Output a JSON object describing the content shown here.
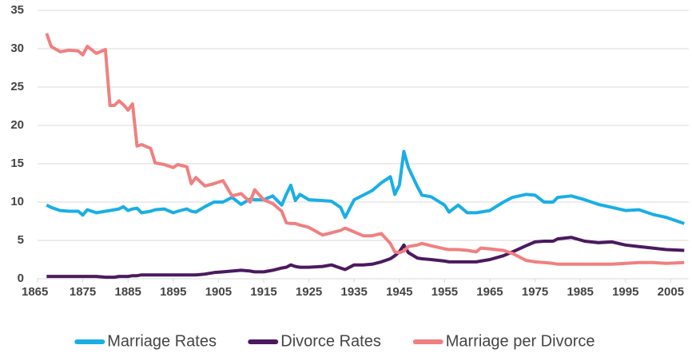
{
  "chart_data": {
    "type": "line",
    "x": [
      1867,
      1868,
      1870,
      1872,
      1874,
      1875,
      1876,
      1878,
      1880,
      1881,
      1882,
      1883,
      1884,
      1885,
      1886,
      1887,
      1888,
      1890,
      1891,
      1893,
      1895,
      1896,
      1898,
      1899,
      1900,
      1902,
      1904,
      1906,
      1908,
      1910,
      1912,
      1913,
      1915,
      1917,
      1919,
      1920,
      1921,
      1922,
      1923,
      1925,
      1928,
      1930,
      1932,
      1933,
      1935,
      1937,
      1939,
      1941,
      1943,
      1944,
      1945,
      1946,
      1947,
      1949,
      1950,
      1952,
      1955,
      1956,
      1958,
      1960,
      1962,
      1963,
      1965,
      1968,
      1970,
      1973,
      1975,
      1977,
      1979,
      1980,
      1983,
      1986,
      1989,
      1992,
      1995,
      1998,
      2001,
      2004,
      2008
    ],
    "series": [
      {
        "name": "Marriage Rates",
        "color": "#1aaee5",
        "values": [
          9.6,
          9.3,
          8.9,
          8.8,
          8.8,
          8.3,
          9.0,
          8.6,
          8.8,
          8.9,
          9.0,
          9.1,
          9.4,
          8.9,
          9.1,
          9.2,
          8.6,
          8.8,
          9.0,
          9.1,
          8.6,
          8.8,
          9.1,
          8.8,
          8.7,
          9.4,
          10.0,
          10.0,
          10.6,
          9.7,
          10.4,
          10.3,
          10.3,
          10.8,
          9.6,
          11.0,
          12.2,
          10.2,
          11.0,
          10.3,
          10.2,
          10.1,
          9.3,
          8.0,
          10.3,
          10.9,
          11.5,
          12.5,
          13.3,
          11.0,
          12.2,
          16.6,
          14.5,
          12.0,
          10.9,
          10.7,
          9.6,
          8.7,
          9.6,
          8.6,
          8.6,
          8.7,
          8.9,
          10.0,
          10.6,
          11.0,
          10.9,
          10.0,
          10.0,
          10.6,
          10.8,
          10.3,
          9.7,
          9.3,
          8.9,
          9.0,
          8.4,
          8.0,
          7.2
        ]
      },
      {
        "name": "Divorce Rates",
        "color": "#4b1a5e",
        "values": [
          0.3,
          0.3,
          0.3,
          0.3,
          0.3,
          0.3,
          0.3,
          0.3,
          0.2,
          0.2,
          0.2,
          0.3,
          0.3,
          0.3,
          0.4,
          0.4,
          0.5,
          0.5,
          0.5,
          0.5,
          0.5,
          0.5,
          0.5,
          0.5,
          0.5,
          0.6,
          0.8,
          0.9,
          1.0,
          1.1,
          1.0,
          0.9,
          0.9,
          1.1,
          1.4,
          1.5,
          1.8,
          1.6,
          1.5,
          1.5,
          1.6,
          1.8,
          1.4,
          1.2,
          1.8,
          1.8,
          1.9,
          2.2,
          2.6,
          3.0,
          3.5,
          4.4,
          3.4,
          2.7,
          2.6,
          2.5,
          2.3,
          2.2,
          2.2,
          2.2,
          2.2,
          2.3,
          2.5,
          3.0,
          3.5,
          4.3,
          4.8,
          4.9,
          4.9,
          5.2,
          5.4,
          4.9,
          4.7,
          4.8,
          4.4,
          4.2,
          4.0,
          3.8,
          3.7
        ]
      },
      {
        "name": "Marriage per Divorce",
        "color": "#f08080",
        "values": [
          32.0,
          30.3,
          29.6,
          29.8,
          29.7,
          29.2,
          30.3,
          29.4,
          29.9,
          22.6,
          22.6,
          23.2,
          22.7,
          22.0,
          22.8,
          17.3,
          17.5,
          17.0,
          15.1,
          14.9,
          14.5,
          14.9,
          14.6,
          12.4,
          13.2,
          12.1,
          12.4,
          12.8,
          10.8,
          11.1,
          10.0,
          11.6,
          10.3,
          9.8,
          8.8,
          7.3,
          7.2,
          7.2,
          7.0,
          6.7,
          5.7,
          6.0,
          6.3,
          6.6,
          6.1,
          5.6,
          5.6,
          5.9,
          4.6,
          3.5,
          3.4,
          3.6,
          4.2,
          4.4,
          4.6,
          4.3,
          3.9,
          3.8,
          3.8,
          3.7,
          3.5,
          4.0,
          3.9,
          3.7,
          3.3,
          2.4,
          2.2,
          2.1,
          2.0,
          1.9,
          1.9,
          1.9,
          1.9,
          1.9,
          2.0,
          2.1,
          2.1,
          2.0,
          2.1
        ]
      }
    ],
    "xlim": [
      1865,
      2009
    ],
    "xticks": [
      1865,
      1875,
      1885,
      1895,
      1905,
      1915,
      1925,
      1935,
      1945,
      1955,
      1965,
      1975,
      1985,
      1995,
      2005
    ],
    "ylim": [
      0,
      35
    ],
    "yticks": [
      0,
      5,
      10,
      15,
      20,
      25,
      30,
      35
    ],
    "grid": true,
    "legend": "bottom"
  }
}
